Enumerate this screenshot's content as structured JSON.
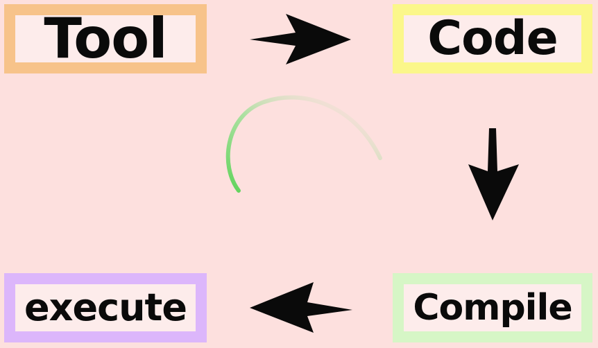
{
  "nodes": {
    "tool": {
      "label": "Tool",
      "border_color": "#f7c38a"
    },
    "code": {
      "label": "Code",
      "border_color": "#fbf78a"
    },
    "compile": {
      "label": "Compile",
      "border_color": "#d6f6c6"
    },
    "execute": {
      "label": "execute",
      "border_color": "#dcb6fb"
    }
  },
  "colors": {
    "background": "#fde0de",
    "arrow": "#0a0a0a",
    "progress_stroke": "#5fd35a"
  },
  "icons": {
    "arrow_tool_to_code": "arrow-right-icon",
    "arrow_code_to_compile": "arrow-down-icon",
    "arrow_compile_to_execute": "arrow-left-icon",
    "progress_swirl": "progress-arc-icon"
  }
}
